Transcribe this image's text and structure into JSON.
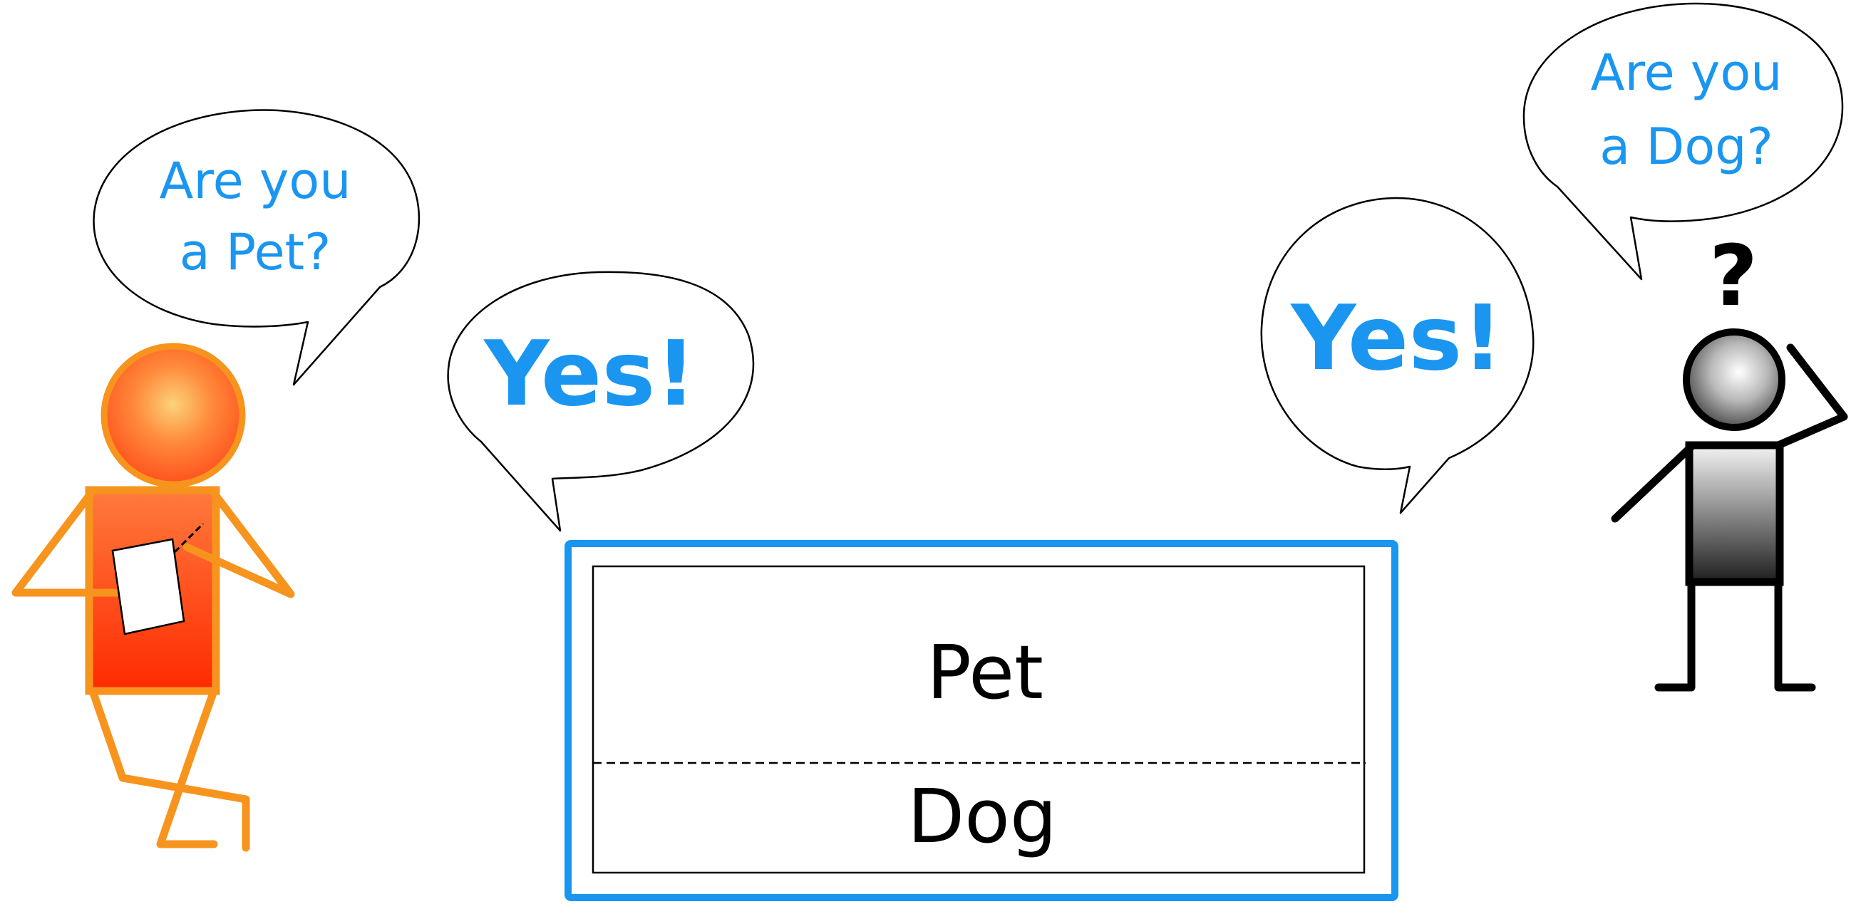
{
  "colors": {
    "accent_blue": "#1a96f0",
    "orange": "#f7941d",
    "orange_head_center": "#fbd27a",
    "orange_head_edge": "#ff4a1a",
    "orange_body_top": "#ff7a3d",
    "orange_body_bottom": "#ff2a00",
    "gray_light": "#f0f0f0",
    "gray_dark": "#1e1e1e"
  },
  "left_person": {
    "bubble_line1": "Are you",
    "bubble_line2": "a Pet?"
  },
  "right_person": {
    "bubble_line1": "Are you",
    "bubble_line2": "a Dog?",
    "question_mark": "?"
  },
  "object_box": {
    "answer_left": "Yes!",
    "answer_right": "Yes!",
    "type_upper": "Pet",
    "type_lower": "Dog"
  }
}
